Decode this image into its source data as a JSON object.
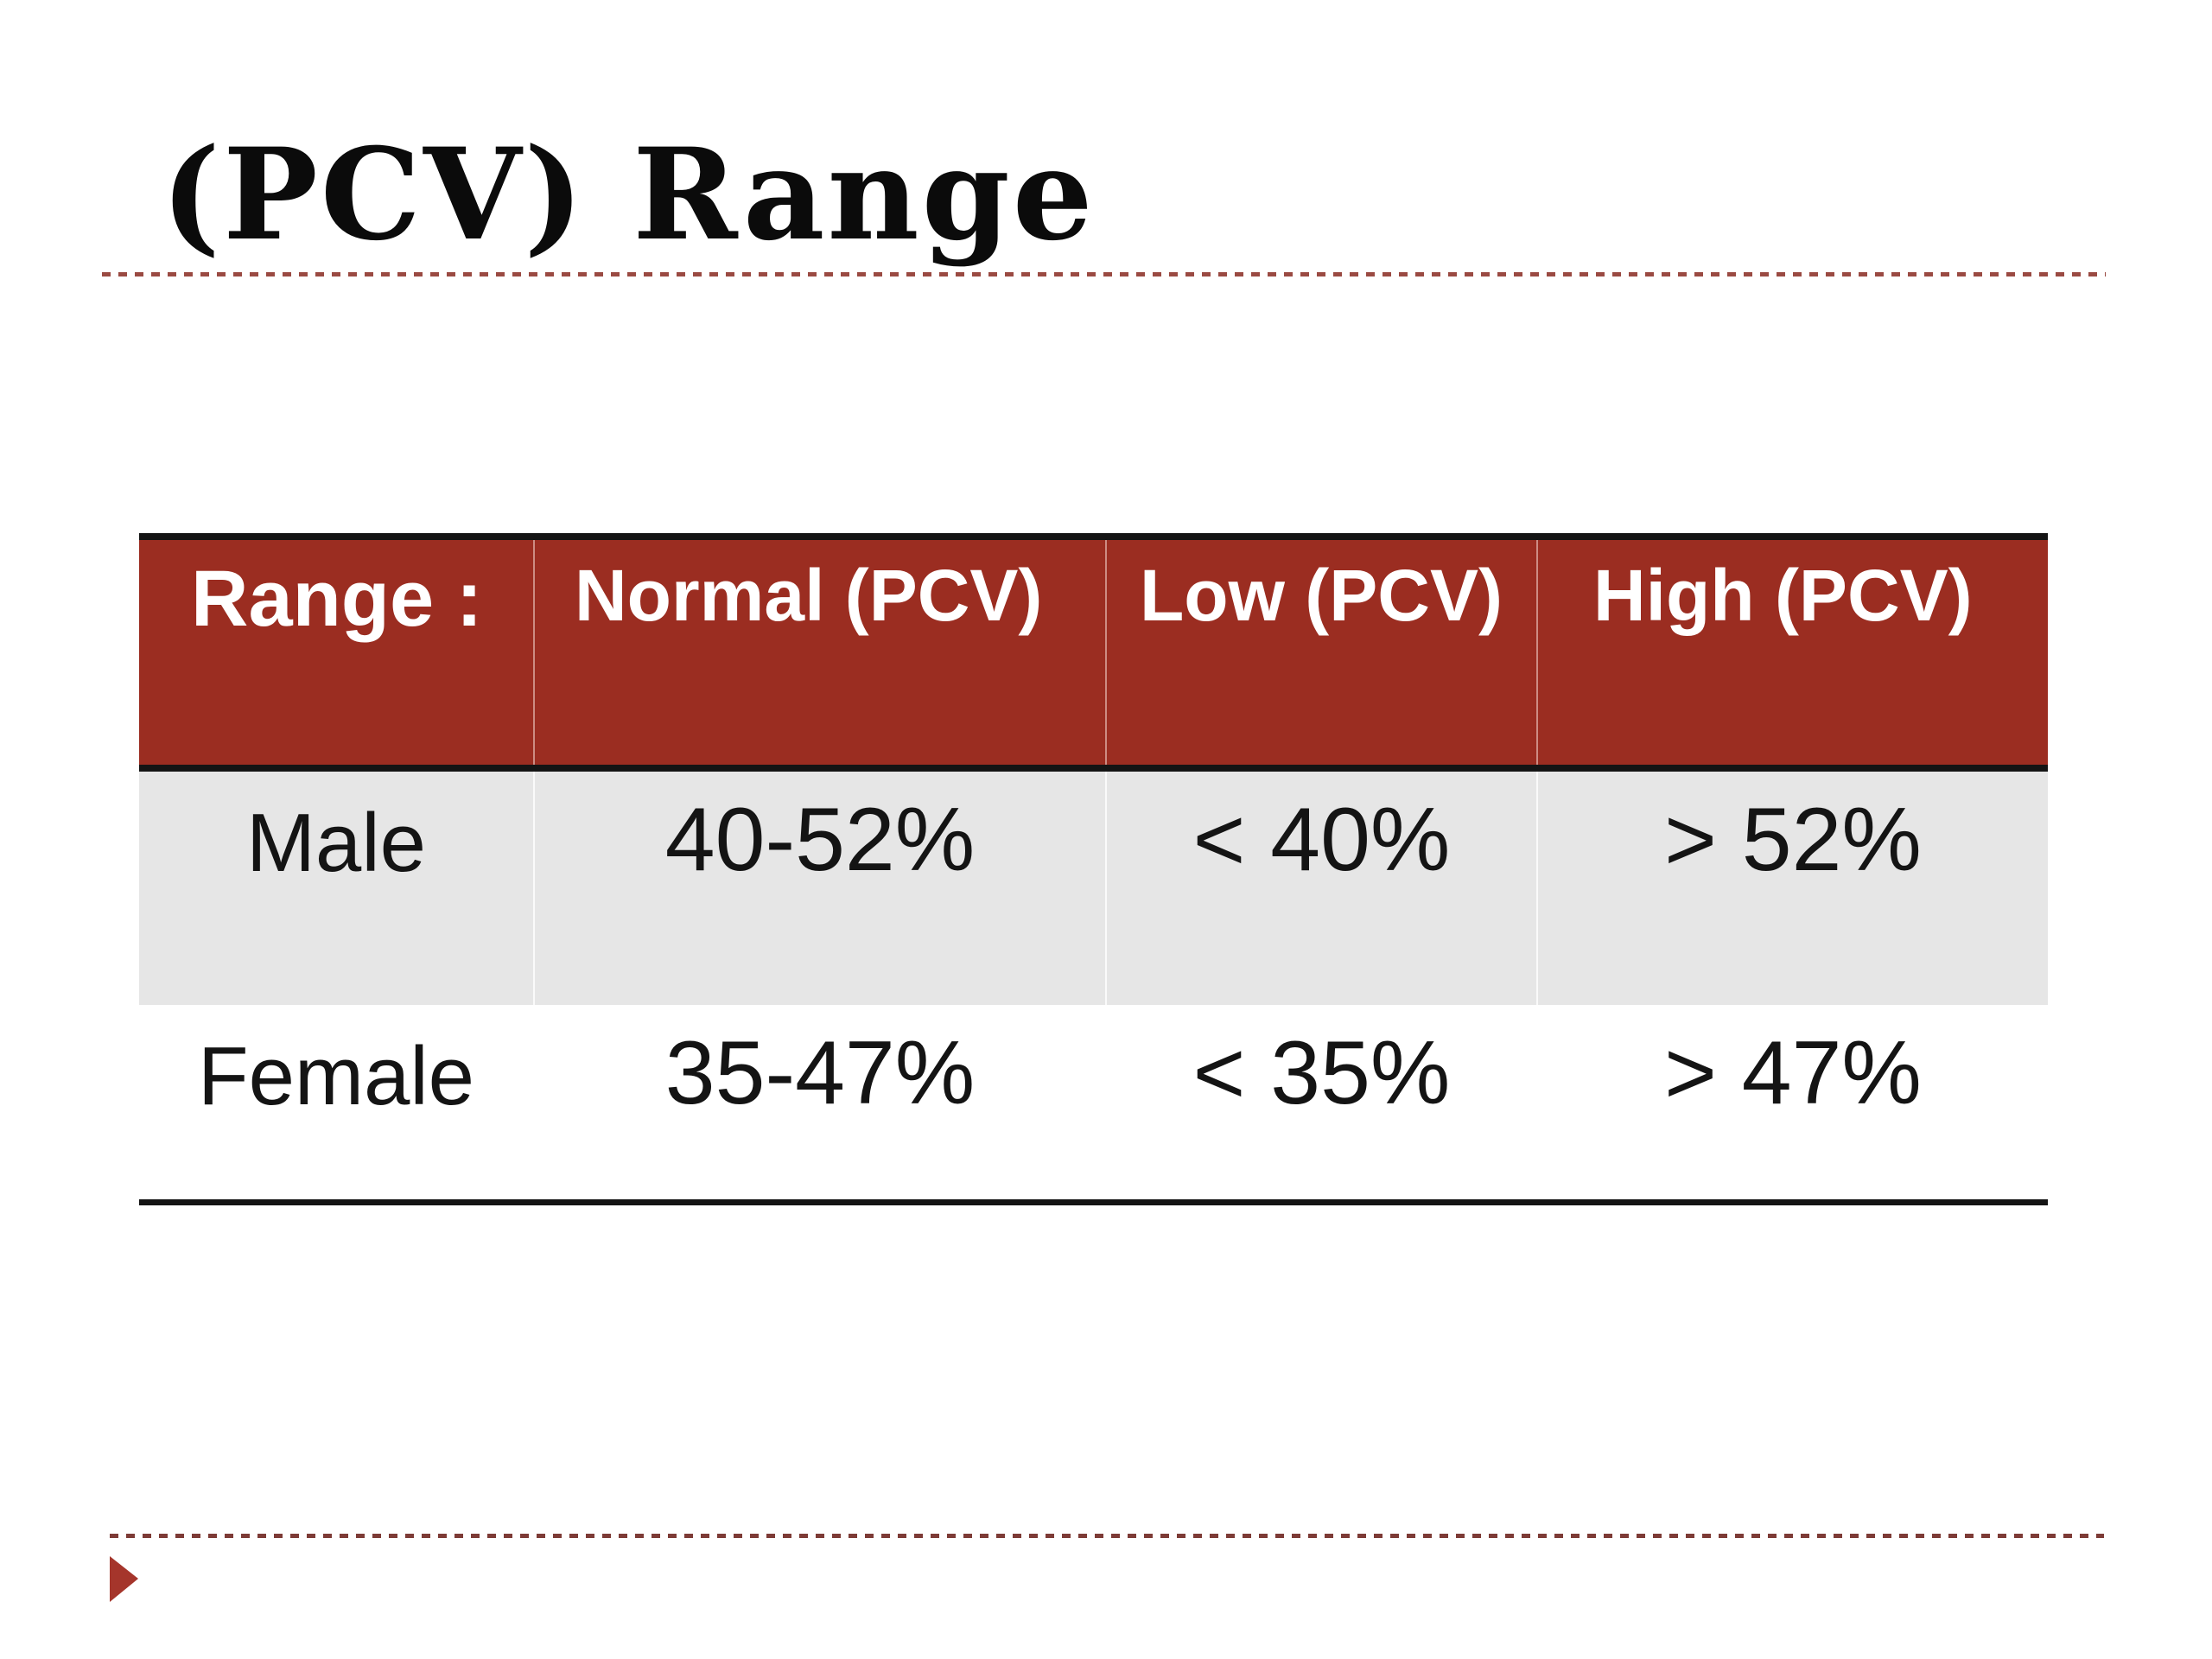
{
  "slide": {
    "title": "(PCV) Range"
  },
  "colors": {
    "header_bg": "#9B2D21",
    "header_text": "#FFFFFF",
    "row_alt_bg": "#E6E6E6",
    "border_black": "#141414",
    "dash_top": "#9A4A42",
    "dash_bottom": "#7D3B36",
    "triangle": "#A5352B"
  },
  "table": {
    "columns": [
      "Range :",
      "Normal (PCV)",
      "Low (PCV)",
      "High (PCV)"
    ],
    "rows": [
      [
        "Male",
        "40-52%",
        "< 40%",
        "> 52%"
      ],
      [
        "Female",
        "35-47%",
        "< 35%",
        "> 47%"
      ]
    ]
  }
}
